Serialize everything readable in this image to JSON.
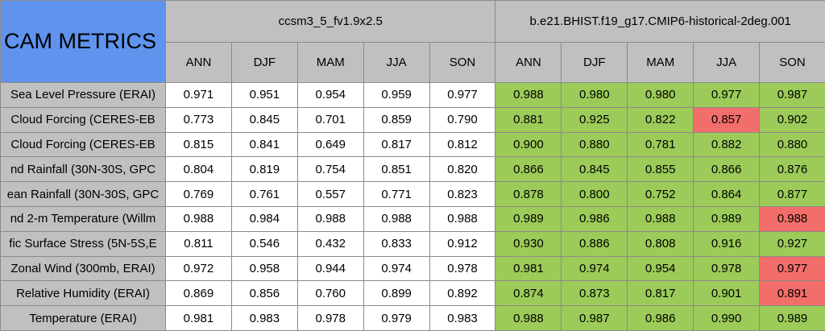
{
  "title": "CAM METRICS",
  "groups": [
    "ccsm3_5_fv1.9x2.5",
    "b.e21.BHIST.f19_g17.CMIP6-historical-2deg.001"
  ],
  "seasons": [
    "ANN",
    "DJF",
    "MAM",
    "JJA",
    "SON"
  ],
  "group_colors": [
    "#ffffff",
    "#9ccb59"
  ],
  "highlight_color": "#f26e6a",
  "rows": [
    {
      "label": "Sea Level Pressure (ERAI)",
      "values": [
        [
          "0.971",
          "0.951",
          "0.954",
          "0.959",
          "0.977"
        ],
        [
          "0.988",
          "0.980",
          "0.980",
          "0.977",
          "0.987"
        ]
      ],
      "highlight": []
    },
    {
      "label": "Cloud Forcing (CERES-EB",
      "values": [
        [
          "0.773",
          "0.845",
          "0.701",
          "0.859",
          "0.790"
        ],
        [
          "0.881",
          "0.925",
          "0.822",
          "0.857",
          "0.902"
        ]
      ],
      "highlight": [
        3
      ]
    },
    {
      "label": "Cloud Forcing (CERES-EB",
      "values": [
        [
          "0.815",
          "0.841",
          "0.649",
          "0.817",
          "0.812"
        ],
        [
          "0.900",
          "0.880",
          "0.781",
          "0.882",
          "0.880"
        ]
      ],
      "highlight": []
    },
    {
      "label": "nd Rainfall (30N-30S, GPC",
      "values": [
        [
          "0.804",
          "0.819",
          "0.754",
          "0.851",
          "0.820"
        ],
        [
          "0.866",
          "0.845",
          "0.855",
          "0.866",
          "0.876"
        ]
      ],
      "highlight": []
    },
    {
      "label": "ean Rainfall (30N-30S, GPC",
      "values": [
        [
          "0.769",
          "0.761",
          "0.557",
          "0.771",
          "0.823"
        ],
        [
          "0.878",
          "0.800",
          "0.752",
          "0.864",
          "0.877"
        ]
      ],
      "highlight": []
    },
    {
      "label": "nd 2-m Temperature (Willm",
      "values": [
        [
          "0.988",
          "0.984",
          "0.988",
          "0.988",
          "0.988"
        ],
        [
          "0.989",
          "0.986",
          "0.988",
          "0.989",
          "0.988"
        ]
      ],
      "highlight": [
        4
      ]
    },
    {
      "label": "fic Surface Stress (5N-5S,E",
      "values": [
        [
          "0.811",
          "0.546",
          "0.432",
          "0.833",
          "0.912"
        ],
        [
          "0.930",
          "0.886",
          "0.808",
          "0.916",
          "0.927"
        ]
      ],
      "highlight": []
    },
    {
      "label": "Zonal Wind (300mb, ERAI)",
      "values": [
        [
          "0.972",
          "0.958",
          "0.944",
          "0.974",
          "0.978"
        ],
        [
          "0.981",
          "0.974",
          "0.954",
          "0.978",
          "0.977"
        ]
      ],
      "highlight": [
        4
      ]
    },
    {
      "label": "Relative Humidity (ERAI)",
      "values": [
        [
          "0.869",
          "0.856",
          "0.760",
          "0.899",
          "0.892"
        ],
        [
          "0.874",
          "0.873",
          "0.817",
          "0.901",
          "0.891"
        ]
      ],
      "highlight": [
        4
      ]
    },
    {
      "label": "Temperature (ERAI)",
      "values": [
        [
          "0.981",
          "0.983",
          "0.978",
          "0.979",
          "0.983"
        ],
        [
          "0.988",
          "0.987",
          "0.986",
          "0.990",
          "0.989"
        ]
      ],
      "highlight": []
    }
  ]
}
